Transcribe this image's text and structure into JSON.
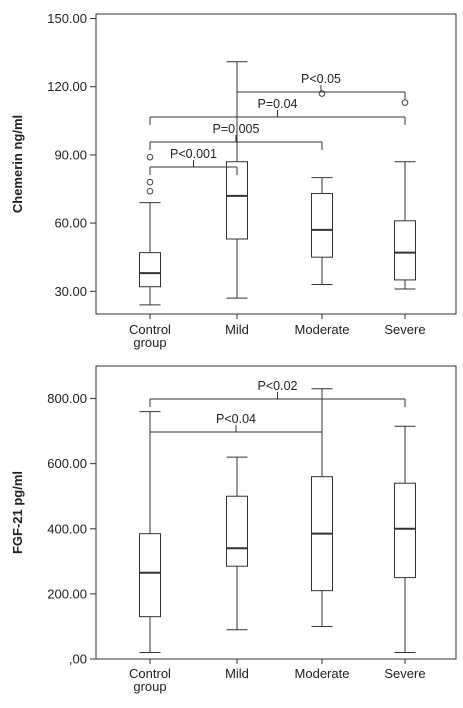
{
  "chart_data": [
    {
      "type": "boxplot",
      "ylabel": "Chemerin ng/ml",
      "ylim": [
        20,
        152
      ],
      "yticks": [
        "30.00",
        "60.00",
        "90.00",
        "120.00",
        "150.00"
      ],
      "ytick_values": [
        30,
        60,
        90,
        120,
        150
      ],
      "categories": [
        [
          "Control",
          "group"
        ],
        [
          "Mild"
        ],
        [
          "Moderate"
        ],
        [
          "Severe"
        ]
      ],
      "boxes": [
        {
          "whisker_low": 24,
          "q1": 32,
          "median": 38,
          "q3": 47,
          "whisker_high": 69,
          "outliers": [
            74,
            78,
            89
          ]
        },
        {
          "whisker_low": 27,
          "q1": 53,
          "median": 72,
          "q3": 87,
          "whisker_high": 131,
          "outliers": []
        },
        {
          "whisker_low": 33,
          "q1": 45,
          "median": 57,
          "q3": 73,
          "whisker_high": 80,
          "outliers": [
            117
          ]
        },
        {
          "whisker_low": 31,
          "q1": 35,
          "median": 47,
          "q3": 61,
          "whisker_high": 87,
          "outliers": [
            113
          ]
        }
      ],
      "comparisons": [
        {
          "label": "P<0.001",
          "from": 0,
          "to": 1,
          "y": 84,
          "row": 0
        },
        {
          "label": "P=0.005",
          "from": 0,
          "to": 2,
          "y": 102,
          "row": 1
        },
        {
          "label": "P=0.04",
          "from": 0,
          "to": 3,
          "y": 122,
          "row": 2
        },
        {
          "label": "P<0.05",
          "from": 1,
          "to": 3,
          "y": 137,
          "row": 3
        }
      ],
      "grid": false
    },
    {
      "type": "boxplot",
      "ylabel": "FGF-21 pg/ml",
      "ylim": [
        0,
        900
      ],
      "yticks": [
        ",00",
        "200.00",
        "400.00",
        "600.00",
        "800.00"
      ],
      "ytick_values": [
        0,
        200,
        400,
        600,
        800
      ],
      "categories": [
        [
          "Control",
          "group"
        ],
        [
          "Mild"
        ],
        [
          "Moderate"
        ],
        [
          "Severe"
        ]
      ],
      "boxes": [
        {
          "whisker_low": 20,
          "q1": 130,
          "median": 265,
          "q3": 385,
          "whisker_high": 760,
          "outliers": []
        },
        {
          "whisker_low": 90,
          "q1": 285,
          "median": 340,
          "q3": 500,
          "whisker_high": 620,
          "outliers": []
        },
        {
          "whisker_low": 100,
          "q1": 210,
          "median": 385,
          "q3": 560,
          "whisker_high": 830,
          "outliers": []
        },
        {
          "whisker_low": 20,
          "q1": 250,
          "median": 400,
          "q3": 540,
          "whisker_high": 715,
          "outliers": []
        }
      ],
      "comparisons": [
        {
          "label": "P<0.04",
          "from": 0,
          "to": 2,
          "y": 748,
          "row": 0
        },
        {
          "label": "P<0.02",
          "from": 0,
          "to": 3,
          "y": 845,
          "row": 1
        }
      ],
      "grid": false
    }
  ]
}
